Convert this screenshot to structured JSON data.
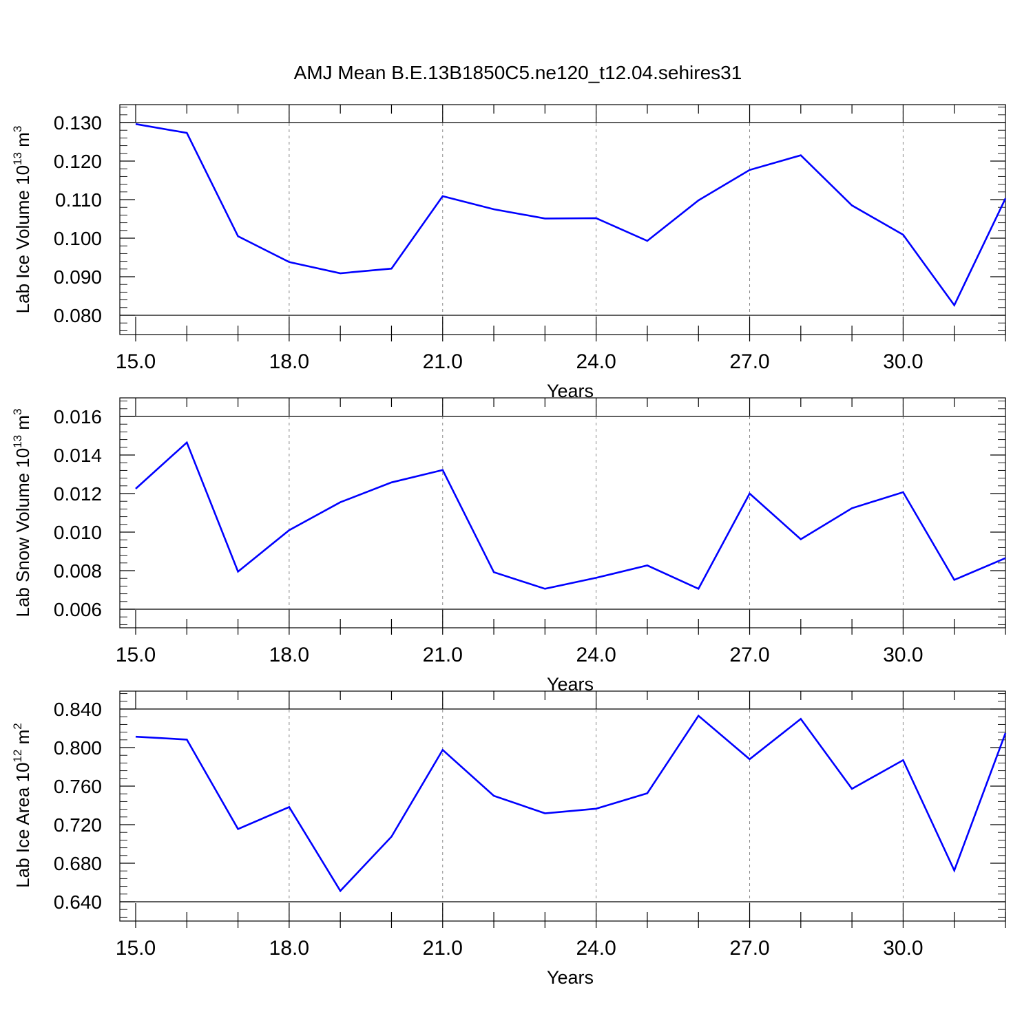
{
  "figure": {
    "title": "AMJ Mean B.E.13B1850C5.ne120_t12.04.sehires31",
    "line_color": "#0000ff",
    "grid_color": "#888888"
  },
  "chart_data": [
    {
      "type": "line",
      "title": "AMJ Mean B.E.13B1850C5.ne120_t12.04.sehires31",
      "xlabel": "Years",
      "ylabel": "Lab Ice Volume 10",
      "ylabel_exp": "13",
      "ylabel_unit": " m",
      "ylabel_unit_exp": "3",
      "xlim": [
        15,
        32
      ],
      "ylim": [
        0.08,
        0.13
      ],
      "xticks": [
        15,
        18,
        21,
        24,
        27,
        30
      ],
      "xtick_labels": [
        "15.0",
        "18.0",
        "21.0",
        "24.0",
        "27.0",
        "30.0"
      ],
      "yticks": [
        0.08,
        0.09,
        0.1,
        0.11,
        0.12,
        0.13
      ],
      "ytick_labels": [
        "0.080",
        "0.090",
        "0.100",
        "0.110",
        "0.120",
        "0.130"
      ],
      "grid": "vertical dashed",
      "x": [
        15,
        16,
        17,
        18,
        19,
        20,
        21,
        22,
        23,
        24,
        25,
        26,
        27,
        28,
        29,
        30,
        31,
        32
      ],
      "series": [
        {
          "values": [
            0.1296,
            0.1273,
            0.1005,
            0.0938,
            0.0909,
            0.0921,
            0.1109,
            0.1075,
            0.1051,
            0.1052,
            0.0993,
            0.1098,
            0.1177,
            0.1215,
            0.1085,
            0.1009,
            0.0826,
            0.1103
          ]
        }
      ]
    },
    {
      "type": "line",
      "xlabel": "Years",
      "ylabel": "Lab Snow Volume 10",
      "ylabel_exp": "13",
      "ylabel_unit": " m",
      "ylabel_unit_exp": "3",
      "xlim": [
        15,
        32
      ],
      "ylim": [
        0.006,
        0.016
      ],
      "xticks": [
        15,
        18,
        21,
        24,
        27,
        30
      ],
      "xtick_labels": [
        "15.0",
        "18.0",
        "21.0",
        "24.0",
        "27.0",
        "30.0"
      ],
      "yticks": [
        0.006,
        0.008,
        0.01,
        0.012,
        0.014,
        0.016
      ],
      "ytick_labels": [
        "0.006",
        "0.008",
        "0.010",
        "0.012",
        "0.014",
        "0.016"
      ],
      "grid": "vertical dashed",
      "x": [
        15,
        16,
        17,
        18,
        19,
        20,
        21,
        22,
        23,
        24,
        25,
        26,
        27,
        28,
        29,
        30,
        31,
        32
      ],
      "series": [
        {
          "values": [
            0.01225,
            0.01465,
            0.00795,
            0.0101,
            0.01155,
            0.01258,
            0.01322,
            0.00792,
            0.00706,
            0.00763,
            0.00827,
            0.00706,
            0.012,
            0.00963,
            0.01124,
            0.01207,
            0.00752,
            0.00865
          ]
        }
      ]
    },
    {
      "type": "line",
      "xlabel": "Years",
      "ylabel": "Lab Ice Area 10",
      "ylabel_exp": "12",
      "ylabel_unit": " m",
      "ylabel_unit_exp": "2",
      "xlim": [
        15,
        32
      ],
      "ylim": [
        0.63,
        0.84
      ],
      "xticks": [
        15,
        18,
        21,
        24,
        27,
        30
      ],
      "xtick_labels": [
        "15.0",
        "18.0",
        "21.0",
        "24.0",
        "27.0",
        "30.0"
      ],
      "yticks": [
        0.64,
        0.68,
        0.72,
        0.76,
        0.8,
        0.84
      ],
      "ytick_labels": [
        "0.640",
        "0.680",
        "0.720",
        "0.760",
        "0.800",
        "0.840"
      ],
      "grid": "vertical dashed",
      "x": [
        15,
        16,
        17,
        18,
        19,
        20,
        21,
        22,
        23,
        24,
        25,
        26,
        27,
        28,
        29,
        30,
        31,
        32
      ],
      "series": [
        {
          "values": [
            0.8113,
            0.8083,
            0.7155,
            0.7383,
            0.6513,
            0.7076,
            0.7976,
            0.7499,
            0.7318,
            0.7366,
            0.7526,
            0.833,
            0.7879,
            0.8297,
            0.7572,
            0.7869,
            0.6725,
            0.8149
          ]
        }
      ]
    }
  ]
}
